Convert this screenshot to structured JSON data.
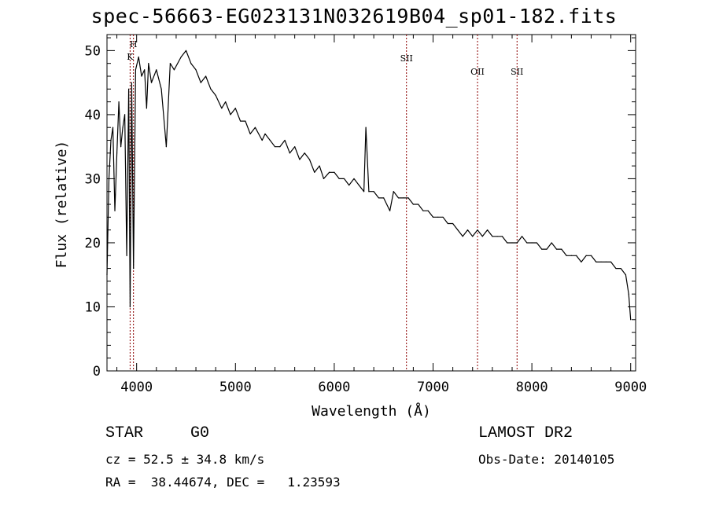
{
  "chart_data": {
    "type": "line",
    "title": "spec-56663-EG023131N032619B04_sp01-182.fits",
    "xlabel": "Wavelength (Å)",
    "ylabel": "Flux (relative)",
    "xlim": [
      3700,
      9050
    ],
    "ylim": [
      0,
      52.5
    ],
    "xticks": [
      4000,
      5000,
      6000,
      7000,
      8000,
      9000
    ],
    "yticks": [
      0,
      10,
      20,
      30,
      40,
      50
    ],
    "grid": false,
    "line_color": "#000000",
    "marker_color": "#8b0000",
    "series": [
      {
        "x": [
          3700,
          3720,
          3740,
          3760,
          3780,
          3800,
          3820,
          3840,
          3860,
          3880,
          3900,
          3920,
          3934,
          3950,
          3968,
          3990,
          4020,
          4050,
          4080,
          4101,
          4120,
          4150,
          4200,
          4250,
          4300,
          4340,
          4380,
          4450,
          4500,
          4550,
          4600,
          4650,
          4700,
          4750,
          4800,
          4861,
          4900,
          4950,
          5000,
          5050,
          5100,
          5150,
          5200,
          5270,
          5300,
          5350,
          5400,
          5450,
          5500,
          5550,
          5600,
          5650,
          5700,
          5750,
          5800,
          5850,
          5893,
          5950,
          6000,
          6050,
          6100,
          6150,
          6200,
          6250,
          6300,
          6320,
          6350,
          6400,
          6450,
          6500,
          6563,
          6600,
          6650,
          6700,
          6750,
          6800,
          6850,
          6900,
          6950,
          7000,
          7050,
          7100,
          7150,
          7200,
          7250,
          7300,
          7350,
          7400,
          7450,
          7500,
          7550,
          7600,
          7650,
          7700,
          7750,
          7800,
          7850,
          7900,
          7950,
          8000,
          8050,
          8100,
          8150,
          8200,
          8250,
          8300,
          8350,
          8400,
          8450,
          8500,
          8550,
          8600,
          8650,
          8700,
          8750,
          8800,
          8850,
          8900,
          8950,
          8980,
          9000
        ],
        "y": [
          15,
          30,
          36,
          38,
          25,
          34,
          42,
          35,
          38,
          40,
          18,
          44,
          10,
          45,
          16,
          47,
          49,
          46,
          47,
          41,
          48,
          45,
          47,
          44,
          35,
          48,
          47,
          49,
          50,
          48,
          47,
          45,
          46,
          44,
          43,
          41,
          42,
          40,
          41,
          39,
          39,
          37,
          38,
          36,
          37,
          36,
          35,
          35,
          36,
          34,
          35,
          33,
          34,
          33,
          31,
          32,
          30,
          31,
          31,
          30,
          30,
          29,
          30,
          29,
          28,
          38,
          28,
          28,
          27,
          27,
          25,
          28,
          27,
          27,
          27,
          26,
          26,
          25,
          25,
          24,
          24,
          24,
          23,
          23,
          22,
          21,
          22,
          21,
          22,
          21,
          22,
          21,
          21,
          21,
          20,
          20,
          20,
          21,
          20,
          20,
          20,
          19,
          19,
          20,
          19,
          19,
          18,
          18,
          18,
          17,
          18,
          18,
          17,
          17,
          17,
          17,
          16,
          16,
          15,
          12,
          8
        ]
      }
    ],
    "line_markers": [
      {
        "label": "H",
        "x": 3968
      },
      {
        "label": "K",
        "x": 3934
      },
      {
        "label": "SII",
        "x": 6731
      },
      {
        "label": "OII",
        "x": 7450
      },
      {
        "label": "SII",
        "x": 7850
      }
    ]
  },
  "info": {
    "class": "STAR",
    "subclass": "G0",
    "cz": "cz = 52.5 ± 34.8 km/s",
    "radec": "RA =  38.44674, DEC =   1.23593",
    "survey": "LAMOST DR2",
    "obsdate": "Obs-Date: 20140105"
  }
}
